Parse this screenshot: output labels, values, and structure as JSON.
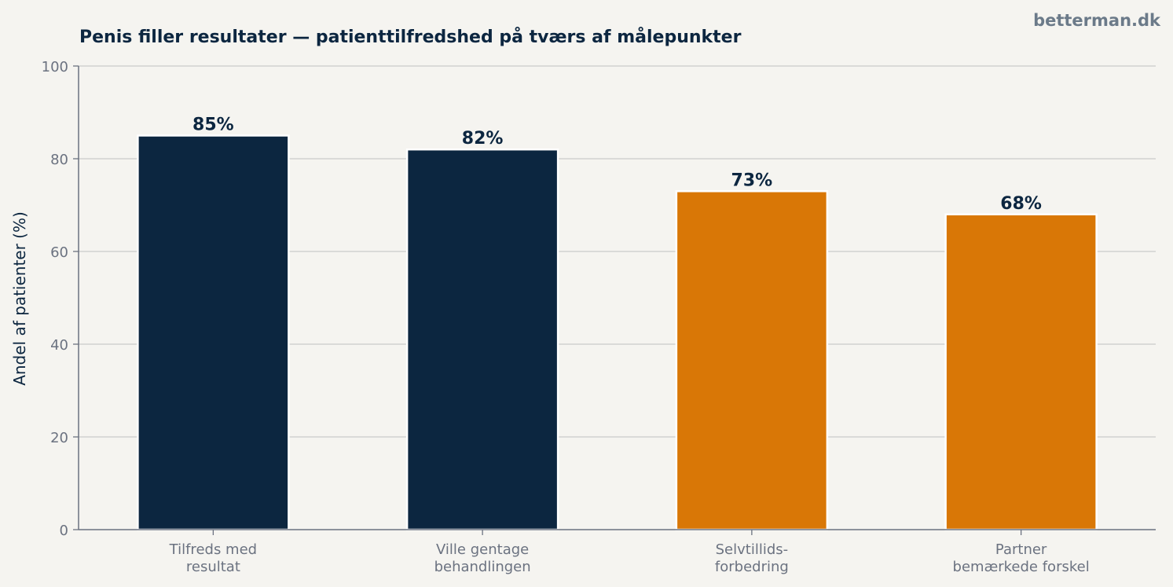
{
  "chart_data": {
    "type": "bar",
    "title": "Penis filler resultater — patienttilfredshed på tværs af målepunkter",
    "watermark": "betterman.dk",
    "xlabel": "",
    "ylabel": "Andel af patienter (%)",
    "ylim": [
      0,
      100
    ],
    "yticks": [
      0,
      20,
      40,
      60,
      80,
      100
    ],
    "grid": true,
    "legend": "none",
    "categories": [
      [
        "Tilfreds med",
        "resultat"
      ],
      [
        "Ville gentage",
        "behandlingen"
      ],
      [
        "Selvtillids-",
        "forbedring"
      ],
      [
        "Partner",
        "bemærkede forskel"
      ]
    ],
    "values": [
      85,
      82,
      73,
      68
    ],
    "value_labels": [
      "85%",
      "82%",
      "73%",
      "68%"
    ],
    "bar_colors": [
      "#0c2640",
      "#0c2640",
      "#d97706",
      "#d97706"
    ]
  },
  "colors": {
    "background": "#f5f4f0",
    "title": "#0c2640",
    "watermark": "#6b7a89",
    "axis": "#6b7280",
    "tick_label": "#6b7280",
    "grid": "#c9c9c9",
    "ylabel": "#0c2640",
    "bar_label": "#0c2640"
  }
}
